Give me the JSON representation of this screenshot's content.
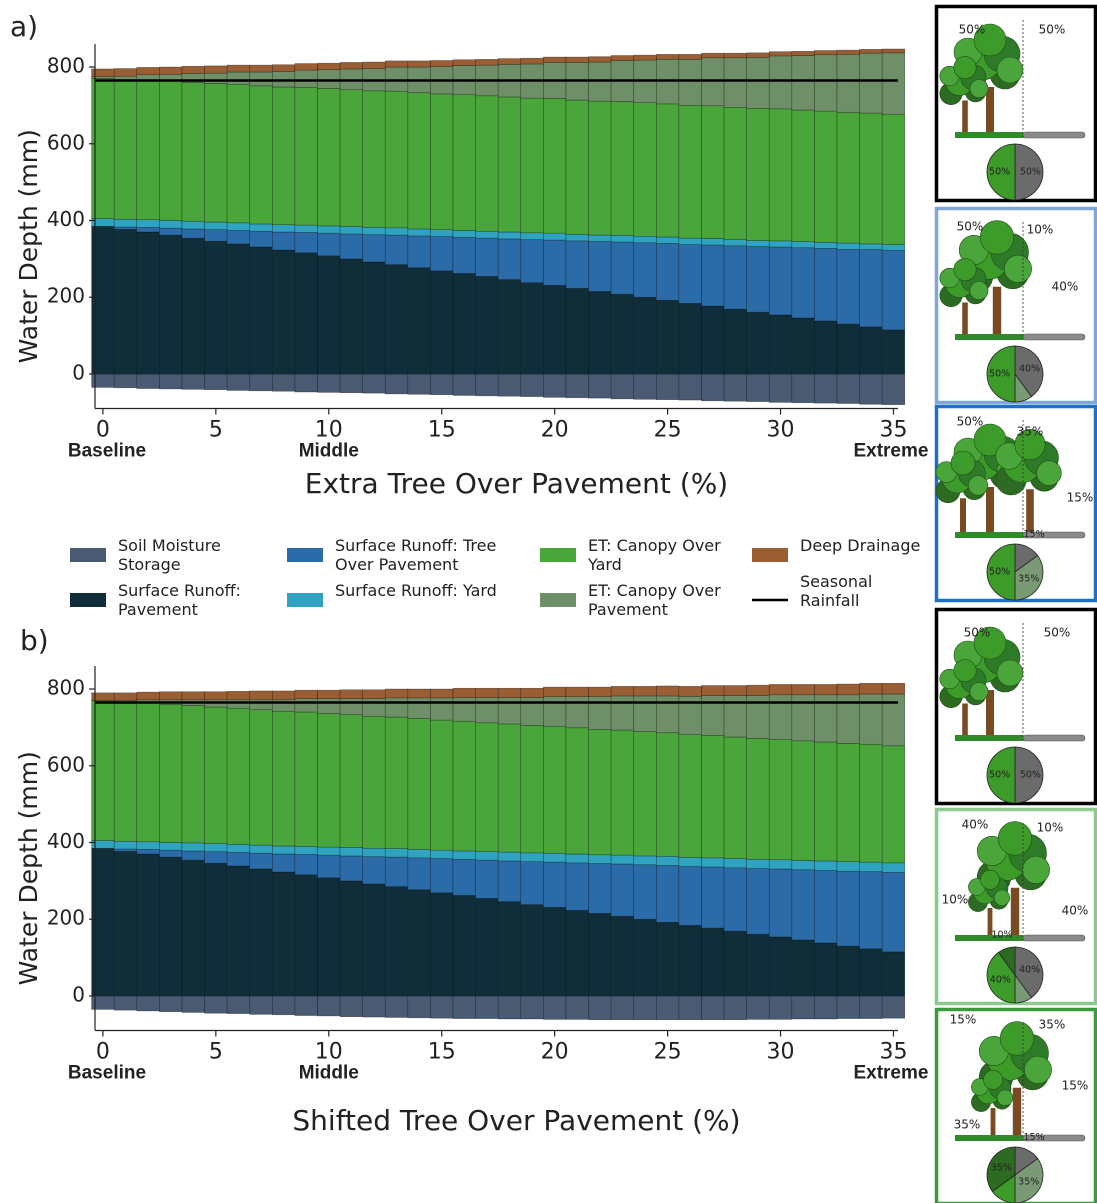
{
  "chart_data": [
    {
      "type": "bar",
      "stacked": true,
      "label": "a)",
      "xlabel": "Extra Tree Over Pavement (%)",
      "ylabel": "Water Depth (mm)",
      "x": [
        0,
        1,
        2,
        3,
        4,
        5,
        6,
        7,
        8,
        9,
        10,
        11,
        12,
        13,
        14,
        15,
        16,
        17,
        18,
        19,
        20,
        21,
        22,
        23,
        24,
        25,
        26,
        27,
        28,
        29,
        30,
        31,
        32,
        33,
        34,
        35
      ],
      "xlim": [
        -0.35,
        35.2
      ],
      "xticks": [
        0,
        5,
        10,
        15,
        20,
        25,
        30,
        35
      ],
      "ylim": [
        -90,
        860
      ],
      "yticks": [
        0,
        200,
        400,
        600,
        800
      ],
      "scenario_labels": [
        {
          "text": "Baseline",
          "x": 0,
          "color": "#000000"
        },
        {
          "text": "Middle",
          "x": 10,
          "color": "#7fa8d8"
        },
        {
          "text": "Extreme",
          "x": 35,
          "color": "#1f6fc4"
        }
      ],
      "rainfall": {
        "name": "Seasonal Rainfall",
        "value": 765,
        "color": "#000000"
      },
      "series": [
        {
          "name": "Soil Moisture Storage",
          "color": "#4a5a73",
          "values": [
            -35,
            -36,
            -38,
            -39,
            -40,
            -41,
            -43,
            -44,
            -45,
            -47,
            -48,
            -49,
            -50,
            -52,
            -53,
            -54,
            -56,
            -57,
            -58,
            -59,
            -61,
            -62,
            -63,
            -65,
            -66,
            -67,
            -68,
            -70,
            -71,
            -72,
            -74,
            -75,
            -76,
            -77,
            -79,
            -80
          ]
        },
        {
          "name": "Surface Runoff: Pavement",
          "color": "#0f2e3a",
          "values": [
            385,
            377,
            370,
            362,
            354,
            346,
            339,
            331,
            323,
            316,
            308,
            300,
            292,
            285,
            277,
            269,
            262,
            254,
            246,
            238,
            231,
            223,
            215,
            208,
            200,
            192,
            184,
            177,
            169,
            161,
            154,
            146,
            138,
            130,
            123,
            115
          ]
        },
        {
          "name": "Surface Runoff: Tree Over Pavement",
          "color": "#2b6ba8",
          "values": [
            0,
            6,
            12,
            18,
            24,
            30,
            35,
            41,
            47,
            53,
            59,
            65,
            71,
            77,
            83,
            89,
            94,
            100,
            106,
            112,
            118,
            124,
            130,
            136,
            142,
            148,
            153,
            159,
            165,
            171,
            177,
            183,
            189,
            195,
            201,
            207
          ]
        },
        {
          "name": "Surface Runoff: Yard",
          "color": "#2fa3c0",
          "values": [
            20,
            20,
            20,
            20,
            20,
            20,
            20,
            19,
            19,
            19,
            19,
            19,
            19,
            19,
            18,
            18,
            18,
            18,
            18,
            18,
            18,
            17,
            17,
            17,
            17,
            17,
            17,
            17,
            16,
            16,
            16,
            16,
            16,
            16,
            15,
            15
          ]
        },
        {
          "name": "ET: Canopy Over Yard",
          "color": "#4aa63a",
          "values": [
            365,
            364,
            364,
            363,
            362,
            361,
            361,
            360,
            359,
            359,
            358,
            357,
            356,
            356,
            355,
            354,
            354,
            353,
            352,
            351,
            351,
            350,
            349,
            349,
            348,
            347,
            346,
            346,
            345,
            344,
            344,
            343,
            342,
            341,
            341,
            340
          ]
        },
        {
          "name": "ET: Canopy Over Pavement",
          "color": "#6e8f68",
          "values": [
            5,
            9,
            14,
            18,
            23,
            27,
            32,
            36,
            40,
            45,
            49,
            54,
            58,
            63,
            67,
            71,
            76,
            80,
            85,
            89,
            94,
            98,
            102,
            107,
            111,
            116,
            120,
            125,
            129,
            133,
            138,
            142,
            147,
            151,
            156,
            160
          ]
        },
        {
          "name": "Deep Drainage",
          "color": "#9a5e34",
          "values": [
            20,
            20,
            19,
            19,
            19,
            19,
            18,
            18,
            18,
            17,
            17,
            17,
            17,
            16,
            16,
            16,
            15,
            15,
            15,
            15,
            14,
            14,
            14,
            13,
            13,
            13,
            13,
            12,
            12,
            12,
            11,
            11,
            11,
            11,
            10,
            10
          ]
        }
      ]
    },
    {
      "type": "bar",
      "stacked": true,
      "label": "b)",
      "xlabel": "Shifted Tree Over Pavement (%)",
      "ylabel": "Water Depth (mm)",
      "x": [
        0,
        1,
        2,
        3,
        4,
        5,
        6,
        7,
        8,
        9,
        10,
        11,
        12,
        13,
        14,
        15,
        16,
        17,
        18,
        19,
        20,
        21,
        22,
        23,
        24,
        25,
        26,
        27,
        28,
        29,
        30,
        31,
        32,
        33,
        34,
        35
      ],
      "xlim": [
        -0.35,
        35.2
      ],
      "xticks": [
        0,
        5,
        10,
        15,
        20,
        25,
        30,
        35
      ],
      "ylim": [
        -90,
        860
      ],
      "yticks": [
        0,
        200,
        400,
        600,
        800
      ],
      "scenario_labels": [
        {
          "text": "Baseline",
          "x": 0,
          "color": "#000000"
        },
        {
          "text": "Middle",
          "x": 10,
          "color": "#7cc47c"
        },
        {
          "text": "Extreme",
          "x": 35,
          "color": "#2f9a2f"
        }
      ],
      "rainfall": {
        "value": 765,
        "color": "#000000"
      },
      "series": [
        {
          "color": "#4a5a73",
          "values": [
            -35,
            -37,
            -39,
            -41,
            -43,
            -45,
            -46,
            -48,
            -49,
            -51,
            -52,
            -54,
            -55,
            -56,
            -57,
            -58,
            -59,
            -59,
            -60,
            -60,
            -61,
            -61,
            -62,
            -62,
            -62,
            -62,
            -62,
            -62,
            -62,
            -61,
            -61,
            -60,
            -60,
            -59,
            -59,
            -58
          ]
        },
        {
          "color": "#0f2e3a",
          "values": [
            385,
            377,
            370,
            362,
            354,
            346,
            339,
            331,
            323,
            316,
            308,
            300,
            292,
            285,
            277,
            269,
            262,
            254,
            246,
            238,
            231,
            223,
            215,
            208,
            200,
            192,
            184,
            177,
            169,
            161,
            154,
            146,
            138,
            130,
            123,
            115
          ]
        },
        {
          "color": "#2b6ba8",
          "values": [
            0,
            6,
            12,
            18,
            24,
            30,
            35,
            41,
            47,
            53,
            59,
            65,
            71,
            77,
            83,
            89,
            94,
            100,
            106,
            112,
            118,
            124,
            130,
            136,
            142,
            148,
            153,
            159,
            165,
            171,
            177,
            183,
            189,
            195,
            201,
            207
          ]
        },
        {
          "color": "#2fa3c0",
          "values": [
            20,
            20,
            20,
            20,
            21,
            21,
            21,
            21,
            21,
            21,
            21,
            22,
            22,
            22,
            22,
            22,
            22,
            22,
            23,
            23,
            23,
            23,
            23,
            23,
            23,
            24,
            24,
            24,
            24,
            24,
            24,
            24,
            25,
            25,
            25,
            25
          ]
        },
        {
          "color": "#4aa63a",
          "values": [
            365,
            363,
            362,
            360,
            358,
            356,
            355,
            353,
            351,
            350,
            348,
            346,
            344,
            343,
            341,
            339,
            338,
            336,
            334,
            332,
            331,
            329,
            327,
            326,
            324,
            322,
            320,
            319,
            317,
            315,
            314,
            312,
            310,
            308,
            307,
            305
          ]
        },
        {
          "color": "#6e8f68",
          "values": [
            0,
            4,
            8,
            12,
            15,
            19,
            23,
            27,
            31,
            35,
            39,
            42,
            46,
            50,
            54,
            58,
            62,
            66,
            69,
            73,
            77,
            81,
            85,
            89,
            93,
            96,
            100,
            104,
            108,
            112,
            116,
            120,
            123,
            127,
            131,
            135
          ]
        },
        {
          "color": "#9a5e34",
          "values": [
            20,
            20,
            20,
            21,
            21,
            21,
            21,
            22,
            22,
            22,
            22,
            23,
            23,
            23,
            23,
            23,
            24,
            24,
            24,
            24,
            25,
            25,
            25,
            25,
            25,
            26,
            26,
            26,
            26,
            27,
            27,
            27,
            27,
            28,
            28,
            28
          ]
        }
      ]
    }
  ],
  "panels": [
    {
      "border": "#000000",
      "labels": [
        "50%",
        "50%"
      ],
      "pie": {
        "values": [
          50,
          50
        ],
        "value_labels": [
          "50%",
          "50%"
        ],
        "colors": [
          "#6b6b6b",
          "#3d9b2a"
        ]
      }
    },
    {
      "border": "#7fa8d8",
      "labels": [
        "50%",
        "10%",
        "40%"
      ],
      "pie": {
        "values": [
          40,
          10,
          50
        ],
        "value_labels": [
          "40%",
          "10%",
          "50%"
        ],
        "colors": [
          "#6b6b6b",
          "#7a9a76",
          "#3d9b2a"
        ]
      }
    },
    {
      "border": "#1f6fc4",
      "labels": [
        "50%",
        "35%",
        "15%"
      ],
      "pie": {
        "values": [
          15,
          35,
          50
        ],
        "value_labels": [
          "15%",
          "35%",
          "50%"
        ],
        "colors": [
          "#6b6b6b",
          "#7a9a76",
          "#3d9b2a"
        ]
      }
    },
    {
      "border": "#000000",
      "labels": [
        "50%",
        "50%"
      ],
      "pie": {
        "values": [
          50,
          50
        ],
        "value_labels": [
          "50%",
          "50%"
        ],
        "colors": [
          "#6b6b6b",
          "#3d9b2a"
        ]
      }
    },
    {
      "border": "#8cc98c",
      "labels": [
        "40%",
        "10%",
        "10%",
        "40%"
      ],
      "pie": {
        "values": [
          40,
          10,
          40,
          10
        ],
        "value_labels": [
          "40%",
          "10%",
          "40%",
          "10%"
        ],
        "colors": [
          "#6b6b6b",
          "#7a9a76",
          "#3d9b2a",
          "#2d6b22"
        ]
      }
    },
    {
      "border": "#3a9a3a",
      "labels": [
        "15%",
        "35%",
        "15%",
        "35%"
      ],
      "pie": {
        "values": [
          15,
          35,
          15,
          35
        ],
        "value_labels": [
          "15%",
          "35%",
          "15%",
          "35%"
        ],
        "colors": [
          "#6b6b6b",
          "#7a9a76",
          "#3d9b2a",
          "#2d6b22"
        ]
      }
    }
  ]
}
